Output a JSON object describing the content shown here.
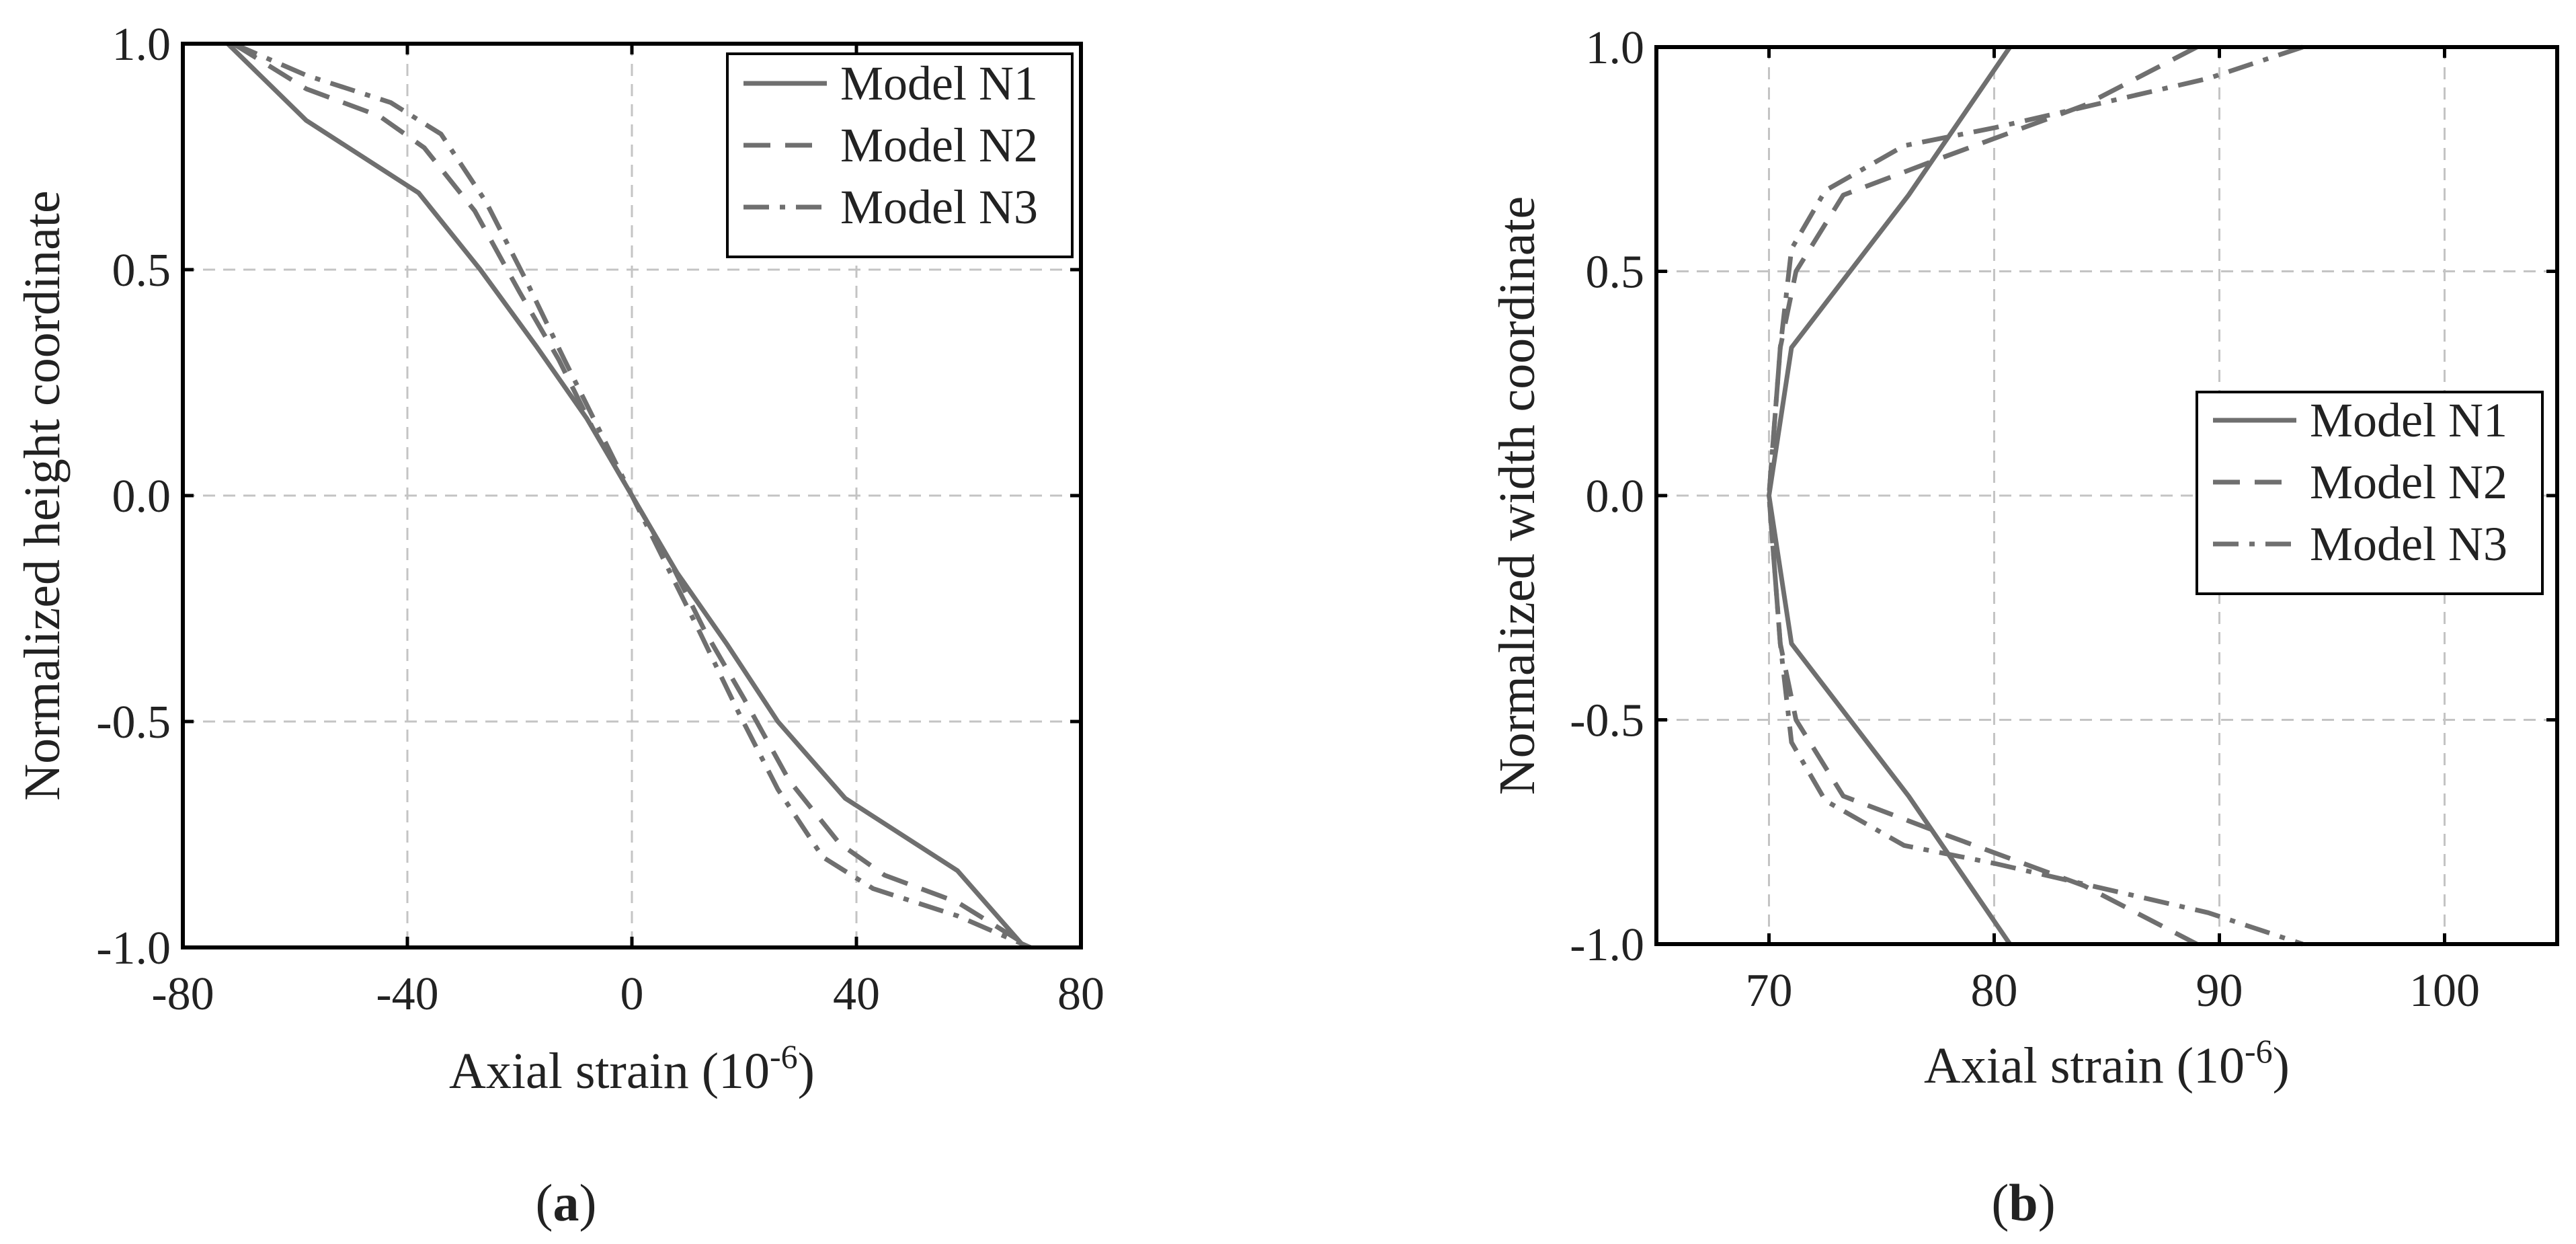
{
  "chart_data": [
    {
      "type": "line",
      "panel_label": "a",
      "xlabel_main": "Axial strain (10",
      "xlabel_exp": "-6",
      "xlabel_close": ")",
      "ylabel": "Normalized height coordinate",
      "xlim": [
        -80,
        80
      ],
      "ylim": [
        -1.0,
        1.0
      ],
      "xticks": [
        -80,
        -40,
        0,
        40,
        80
      ],
      "xtick_labels": [
        "-80",
        "-40",
        "0",
        "40",
        "80"
      ],
      "yticks": [
        1.0,
        0.5,
        0.0,
        -0.5,
        -1.0
      ],
      "ytick_labels": [
        "1.0",
        "0.5",
        "0.0",
        "-0.5",
        "-1.0"
      ],
      "grid": true,
      "legend_position": "top-right",
      "series": [
        {
          "name": "Model N1",
          "style": "solid",
          "points": [
            [
              -72,
              1.0
            ],
            [
              -58,
              0.83
            ],
            [
              -38,
              0.67
            ],
            [
              -27,
              0.5
            ],
            [
              -17,
              0.33
            ],
            [
              -8,
              0.17
            ],
            [
              0,
              0.0
            ],
            [
              8,
              -0.17
            ],
            [
              17,
              -0.33
            ],
            [
              26,
              -0.5
            ],
            [
              38,
              -0.67
            ],
            [
              58,
              -0.83
            ],
            [
              70,
              -1.0
            ]
          ]
        },
        {
          "name": "Model N2",
          "style": "dashed",
          "points": [
            [
              -71,
              1.0
            ],
            [
              -58,
              0.9
            ],
            [
              -45,
              0.84
            ],
            [
              -37,
              0.77
            ],
            [
              -28,
              0.63
            ],
            [
              -20,
              0.45
            ],
            [
              -13,
              0.3
            ],
            [
              -7,
              0.15
            ],
            [
              0,
              0.0
            ],
            [
              7,
              -0.15
            ],
            [
              13,
              -0.3
            ],
            [
              20,
              -0.45
            ],
            [
              28,
              -0.63
            ],
            [
              37,
              -0.77
            ],
            [
              45,
              -0.84
            ],
            [
              58,
              -0.9
            ],
            [
              71,
              -1.0
            ]
          ]
        },
        {
          "name": "Model N3",
          "style": "dashdot",
          "points": [
            [
              -71,
              1.0
            ],
            [
              -58,
              0.93
            ],
            [
              -43,
              0.87
            ],
            [
              -34,
              0.8
            ],
            [
              -26,
              0.65
            ],
            [
              -19,
              0.48
            ],
            [
              -12,
              0.3
            ],
            [
              -6,
              0.15
            ],
            [
              0,
              0.0
            ],
            [
              6,
              -0.15
            ],
            [
              12,
              -0.3
            ],
            [
              19,
              -0.48
            ],
            [
              26,
              -0.65
            ],
            [
              34,
              -0.8
            ],
            [
              43,
              -0.87
            ],
            [
              58,
              -0.93
            ],
            [
              71,
              -1.0
            ]
          ]
        }
      ]
    },
    {
      "type": "line",
      "panel_label": "b",
      "xlabel_main": "Axial strain (10",
      "xlabel_exp": "-6",
      "xlabel_close": ")",
      "ylabel": "Normalized width coordinate",
      "xlim": [
        65,
        105
      ],
      "ylim": [
        -1.0,
        1.0
      ],
      "xticks": [
        70,
        80,
        90,
        100
      ],
      "xtick_labels": [
        "70",
        "80",
        "90",
        "100"
      ],
      "yticks": [
        1.0,
        0.5,
        0.0,
        -0.5,
        -1.0
      ],
      "ytick_labels": [
        "1.0",
        "0.5",
        "0.0",
        "-0.5",
        "-1.0"
      ],
      "grid": true,
      "legend_position": "center-right",
      "series": [
        {
          "name": "Model N1",
          "style": "solid",
          "points": [
            [
              80.7,
              1.0
            ],
            [
              76.2,
              0.67
            ],
            [
              71.0,
              0.33
            ],
            [
              70.0,
              0.0
            ],
            [
              71.0,
              -0.33
            ],
            [
              76.2,
              -0.67
            ],
            [
              80.7,
              -1.0
            ]
          ]
        },
        {
          "name": "Model N2",
          "style": "dashed",
          "points": [
            [
              89.0,
              1.0
            ],
            [
              84.0,
              0.87
            ],
            [
              77.5,
              0.75
            ],
            [
              73.3,
              0.67
            ],
            [
              71.2,
              0.5
            ],
            [
              70.5,
              0.33
            ],
            [
              70.0,
              0.0
            ],
            [
              70.5,
              -0.33
            ],
            [
              71.2,
              -0.5
            ],
            [
              73.3,
              -0.67
            ],
            [
              77.5,
              -0.75
            ],
            [
              84.0,
              -0.87
            ],
            [
              89.0,
              -1.0
            ]
          ]
        },
        {
          "name": "Model N3",
          "style": "dashdot",
          "points": [
            [
              93.7,
              1.0
            ],
            [
              89.5,
              0.93
            ],
            [
              80.0,
              0.82
            ],
            [
              76.0,
              0.78
            ],
            [
              72.5,
              0.68
            ],
            [
              71.0,
              0.55
            ],
            [
              70.5,
              0.33
            ],
            [
              70.0,
              0.0
            ],
            [
              70.5,
              -0.33
            ],
            [
              71.0,
              -0.55
            ],
            [
              72.5,
              -0.68
            ],
            [
              76.0,
              -0.78
            ],
            [
              80.0,
              -0.82
            ],
            [
              89.5,
              -0.93
            ],
            [
              93.7,
              -1.0
            ]
          ]
        }
      ]
    }
  ]
}
